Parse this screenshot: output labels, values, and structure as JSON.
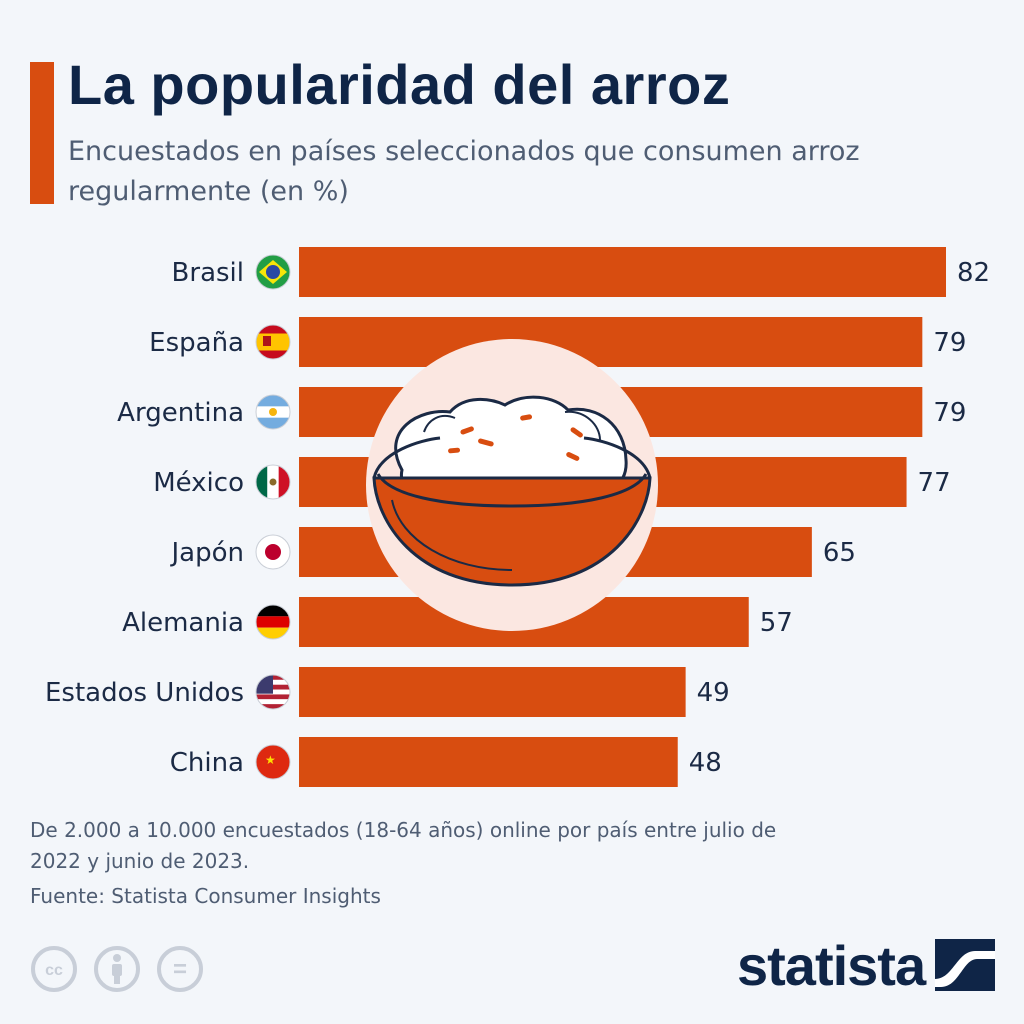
{
  "title": "La popularidad del arroz",
  "subtitle": "Encuestados en países seleccionados que consumen arroz regularmente (en %)",
  "chart_data": {
    "type": "bar",
    "orientation": "horizontal",
    "categories": [
      "Brasil",
      "España",
      "Argentina",
      "México",
      "Japón",
      "Alemania",
      "Estados Unidos",
      "China"
    ],
    "values": [
      82,
      79,
      79,
      77,
      65,
      57,
      49,
      48
    ],
    "flags": [
      "brazil-flag-icon",
      "spain-flag-icon",
      "argentina-flag-icon",
      "mexico-flag-icon",
      "japan-flag-icon",
      "germany-flag-icon",
      "usa-flag-icon",
      "china-flag-icon"
    ],
    "bar_color": "#d84d10",
    "xlim": [
      0,
      82
    ],
    "grid": false,
    "center_illustration": "rice-bowl-icon"
  },
  "note": "De 2.000 a 10.000 encuestados (18-64 años) online por país entre julio de 2022 y junio de 2023.",
  "source": "Fuente: Statista Consumer Insights",
  "license_icons": [
    "cc-icon",
    "attribution-icon",
    "no-derivatives-icon"
  ],
  "license_text": {
    "cc": "cc",
    "nd": "="
  },
  "brand": "statista",
  "colors": {
    "accent": "#d84d10",
    "title": "#0f2547",
    "text": "#4f5d73"
  }
}
